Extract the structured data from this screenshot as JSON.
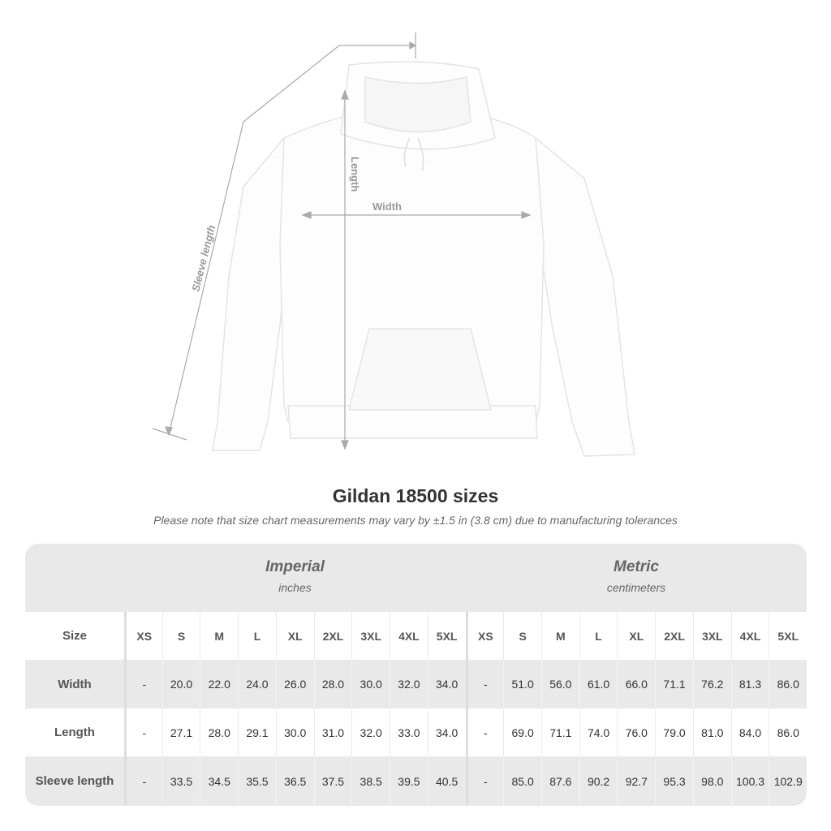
{
  "diagram": {
    "labels": {
      "sleeve": "Sleeve length",
      "length": "Length",
      "width": "Width"
    }
  },
  "title": "Gildan 18500 sizes",
  "subtitle": "Please note that size chart measurements may vary by ±1.5 in (3.8 cm) due to manufacturing tolerances",
  "table": {
    "imperial": {
      "heading": "Imperial",
      "unit": "inches"
    },
    "metric": {
      "heading": "Metric",
      "unit": "centimeters"
    },
    "size_label": "Size",
    "sizes": [
      "XS",
      "S",
      "M",
      "L",
      "XL",
      "2XL",
      "3XL",
      "4XL",
      "5XL"
    ],
    "rows": [
      {
        "label": "Width",
        "imperial": [
          "-",
          "20.0",
          "22.0",
          "24.0",
          "26.0",
          "28.0",
          "30.0",
          "32.0",
          "34.0"
        ],
        "metric": [
          "-",
          "51.0",
          "56.0",
          "61.0",
          "66.0",
          "71.1",
          "76.2",
          "81.3",
          "86.0"
        ]
      },
      {
        "label": "Length",
        "imperial": [
          "-",
          "27.1",
          "28.0",
          "29.1",
          "30.0",
          "31.0",
          "32.0",
          "33.0",
          "34.0"
        ],
        "metric": [
          "-",
          "69.0",
          "71.1",
          "74.0",
          "76.0",
          "79.0",
          "81.0",
          "84.0",
          "86.0"
        ]
      },
      {
        "label": "Sleeve length",
        "imperial": [
          "-",
          "33.5",
          "34.5",
          "35.5",
          "36.5",
          "37.5",
          "38.5",
          "39.5",
          "40.5"
        ],
        "metric": [
          "-",
          "85.0",
          "87.6",
          "90.2",
          "92.7",
          "95.3",
          "98.0",
          "100.3",
          "102.9"
        ]
      }
    ]
  }
}
